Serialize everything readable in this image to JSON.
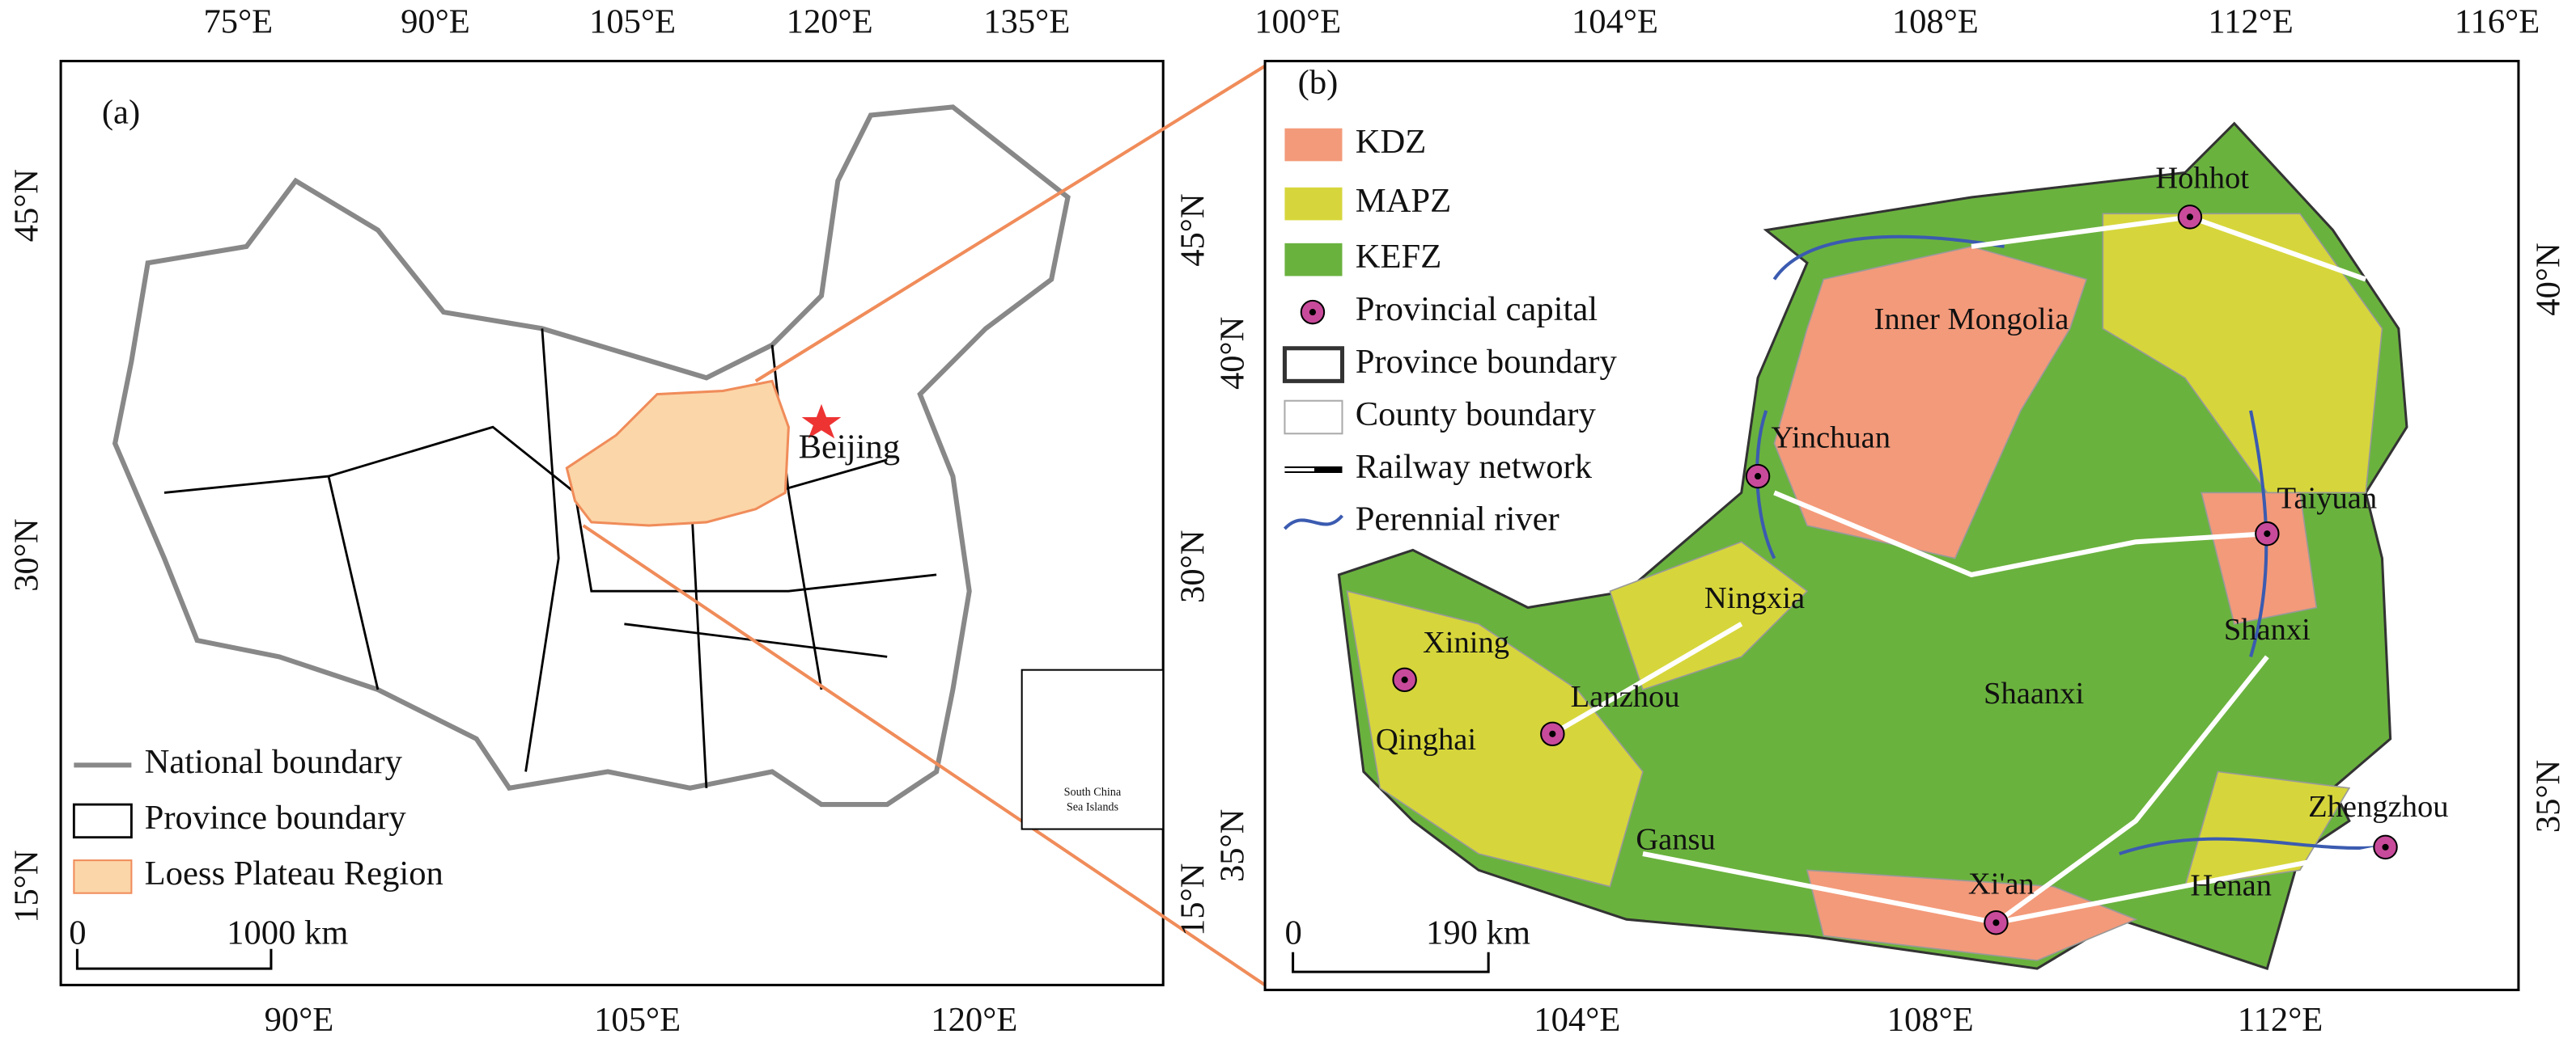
{
  "panel_a": {
    "label": "(a)",
    "top_ticks": [
      "75°E",
      "90°E",
      "105°E",
      "120°E",
      "135°E"
    ],
    "bottom_ticks": [
      "90°E",
      "105°E",
      "120°E"
    ],
    "left_ticks": [
      "45°N",
      "30°N",
      "15°N"
    ],
    "right_ticks": [
      "45°N",
      "30°N",
      "15°N"
    ],
    "city": "Beijing",
    "legend": [
      "National boundary",
      "Province boundary",
      "Loess Plateau Region"
    ],
    "scale": [
      "0",
      "1000 km"
    ],
    "inset": [
      "South China",
      "Sea Islands"
    ]
  },
  "panel_b": {
    "label": "(b)",
    "top_ticks": [
      "100°E",
      "104°E",
      "108°E",
      "112°E",
      "116°E"
    ],
    "bottom_ticks": [
      "104°E",
      "108°E",
      "112°E"
    ],
    "left_ticks": [
      "40°N",
      "35°N"
    ],
    "right_ticks": [
      "40°N",
      "35°N"
    ],
    "legend": [
      "KDZ",
      "MAPZ",
      "KEFZ",
      "Provincial capital",
      "Province boundary",
      "County boundary",
      "Railway network",
      "Perennial river"
    ],
    "capitals": [
      "Hohhot",
      "Yinchuan",
      "Taiyuan",
      "Xining",
      "Lanzhou",
      "Xi'an",
      "Zhengzhou"
    ],
    "provinces": [
      "Inner Mongolia",
      "Ningxia",
      "Shanxi",
      "Shaanxi",
      "Qinghai",
      "Gansu",
      "Henan"
    ],
    "scale": [
      "0",
      "190 km"
    ]
  }
}
